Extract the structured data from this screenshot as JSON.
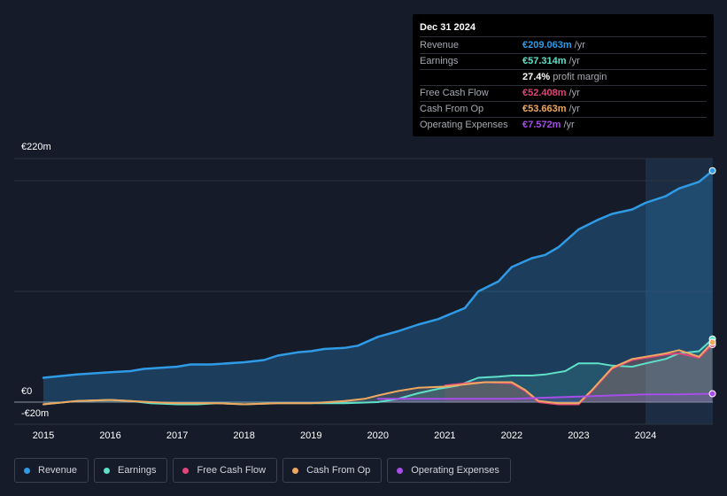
{
  "tooltip": {
    "date": "Dec 31 2024",
    "rows": [
      {
        "label": "Revenue",
        "value": "€209.063m",
        "unit": "/yr",
        "color": "#2f9be6"
      },
      {
        "label": "Earnings",
        "value": "€57.314m",
        "unit": "/yr",
        "color": "#5fe0c8"
      },
      {
        "label": "",
        "value": "27.4%",
        "unit": "profit margin",
        "color": "#ffffff"
      },
      {
        "label": "Free Cash Flow",
        "value": "€52.408m",
        "unit": "/yr",
        "color": "#e0457b"
      },
      {
        "label": "Cash From Op",
        "value": "€53.663m",
        "unit": "/yr",
        "color": "#f0a860"
      },
      {
        "label": "Operating Expenses",
        "value": "€7.572m",
        "unit": "/yr",
        "color": "#a64ee8"
      }
    ]
  },
  "legend": [
    {
      "label": "Revenue",
      "color": "#2f9be6"
    },
    {
      "label": "Earnings",
      "color": "#5fe0c8"
    },
    {
      "label": "Free Cash Flow",
      "color": "#e0457b"
    },
    {
      "label": "Cash From Op",
      "color": "#f0a860"
    },
    {
      "label": "Operating Expenses",
      "color": "#a64ee8"
    }
  ],
  "chart_data": {
    "type": "area",
    "ylim": [
      -20,
      220
    ],
    "y_tick_labels": [
      {
        "value": 220,
        "label": "€220m"
      },
      {
        "value": 0,
        "label": "€0"
      },
      {
        "value": -20,
        "label": "-€20m"
      }
    ],
    "x_ticks": [
      2015,
      2016,
      2017,
      2018,
      2019,
      2020,
      2021,
      2022,
      2023,
      2024
    ],
    "forecast_start": 2024.0,
    "x_end": 2025.0,
    "series": [
      {
        "name": "Revenue",
        "color": "#2f9be6",
        "points": [
          [
            2015.0,
            22
          ],
          [
            2015.5,
            25
          ],
          [
            2016.0,
            27
          ],
          [
            2016.3,
            28
          ],
          [
            2016.5,
            30
          ],
          [
            2017.0,
            32
          ],
          [
            2017.2,
            34
          ],
          [
            2017.5,
            34
          ],
          [
            2018.0,
            36
          ],
          [
            2018.3,
            38
          ],
          [
            2018.5,
            42
          ],
          [
            2018.8,
            45
          ],
          [
            2019.0,
            46
          ],
          [
            2019.2,
            48
          ],
          [
            2019.5,
            49
          ],
          [
            2019.7,
            51
          ],
          [
            2020.0,
            59
          ],
          [
            2020.3,
            64
          ],
          [
            2020.6,
            70
          ],
          [
            2020.9,
            75
          ],
          [
            2021.1,
            80
          ],
          [
            2021.3,
            85
          ],
          [
            2021.5,
            100
          ],
          [
            2021.8,
            109
          ],
          [
            2022.0,
            122
          ],
          [
            2022.3,
            130
          ],
          [
            2022.5,
            133
          ],
          [
            2022.7,
            140
          ],
          [
            2023.0,
            156
          ],
          [
            2023.3,
            165
          ],
          [
            2023.5,
            170
          ],
          [
            2023.8,
            174
          ],
          [
            2024.0,
            180
          ],
          [
            2024.3,
            186
          ],
          [
            2024.5,
            193
          ],
          [
            2024.8,
            199
          ],
          [
            2025.0,
            209
          ]
        ]
      },
      {
        "name": "Earnings",
        "color": "#5fe0c8",
        "points": [
          [
            2015.0,
            -2
          ],
          [
            2015.5,
            1
          ],
          [
            2016.0,
            2
          ],
          [
            2016.3,
            1
          ],
          [
            2016.6,
            -1
          ],
          [
            2017.0,
            -2
          ],
          [
            2017.3,
            -2
          ],
          [
            2017.6,
            -1
          ],
          [
            2018.0,
            -2
          ],
          [
            2018.5,
            -1
          ],
          [
            2019.0,
            -1
          ],
          [
            2019.5,
            -1
          ],
          [
            2020.0,
            0
          ],
          [
            2020.3,
            3
          ],
          [
            2020.6,
            8
          ],
          [
            2020.9,
            12
          ],
          [
            2021.2,
            15
          ],
          [
            2021.5,
            22
          ],
          [
            2021.8,
            23
          ],
          [
            2022.0,
            24
          ],
          [
            2022.3,
            24
          ],
          [
            2022.5,
            25
          ],
          [
            2022.8,
            28
          ],
          [
            2023.0,
            35
          ],
          [
            2023.3,
            35
          ],
          [
            2023.5,
            33
          ],
          [
            2023.8,
            32
          ],
          [
            2024.0,
            35
          ],
          [
            2024.3,
            39
          ],
          [
            2024.5,
            44
          ],
          [
            2024.8,
            46
          ],
          [
            2025.0,
            57
          ]
        ]
      },
      {
        "name": "Free Cash Flow",
        "color": "#e0457b",
        "points": [
          [
            2021.0,
            15
          ],
          [
            2021.3,
            17
          ],
          [
            2021.6,
            18
          ],
          [
            2022.0,
            17
          ],
          [
            2022.2,
            10
          ],
          [
            2022.4,
            0
          ],
          [
            2022.7,
            -2
          ],
          [
            2023.0,
            -2
          ],
          [
            2023.2,
            10
          ],
          [
            2023.5,
            30
          ],
          [
            2023.8,
            38
          ],
          [
            2024.0,
            40
          ],
          [
            2024.3,
            43
          ],
          [
            2024.5,
            44
          ],
          [
            2024.8,
            40
          ],
          [
            2025.0,
            52
          ]
        ]
      },
      {
        "name": "Cash From Op",
        "color": "#f0a860",
        "points": [
          [
            2015.0,
            -2
          ],
          [
            2015.5,
            1
          ],
          [
            2016.0,
            2
          ],
          [
            2016.3,
            1
          ],
          [
            2016.6,
            0
          ],
          [
            2017.0,
            -1
          ],
          [
            2017.3,
            -1
          ],
          [
            2017.6,
            -1
          ],
          [
            2018.0,
            -2
          ],
          [
            2018.5,
            -1
          ],
          [
            2019.0,
            -1
          ],
          [
            2019.5,
            1
          ],
          [
            2019.8,
            3
          ],
          [
            2020.0,
            6
          ],
          [
            2020.3,
            10
          ],
          [
            2020.6,
            13
          ],
          [
            2021.0,
            14
          ],
          [
            2021.3,
            16
          ],
          [
            2021.6,
            18
          ],
          [
            2022.0,
            18
          ],
          [
            2022.2,
            11
          ],
          [
            2022.4,
            1
          ],
          [
            2022.7,
            -1
          ],
          [
            2023.0,
            -1
          ],
          [
            2023.2,
            11
          ],
          [
            2023.5,
            31
          ],
          [
            2023.8,
            39
          ],
          [
            2024.0,
            41
          ],
          [
            2024.3,
            44
          ],
          [
            2024.5,
            47
          ],
          [
            2024.8,
            41
          ],
          [
            2025.0,
            54
          ]
        ]
      },
      {
        "name": "Operating Expenses",
        "color": "#a64ee8",
        "points": [
          [
            2020.0,
            3
          ],
          [
            2020.5,
            3
          ],
          [
            2021.0,
            3
          ],
          [
            2021.5,
            3
          ],
          [
            2022.0,
            3
          ],
          [
            2022.5,
            4
          ],
          [
            2023.0,
            5
          ],
          [
            2023.5,
            6
          ],
          [
            2024.0,
            7
          ],
          [
            2024.5,
            7
          ],
          [
            2025.0,
            7.6
          ]
        ]
      }
    ]
  }
}
